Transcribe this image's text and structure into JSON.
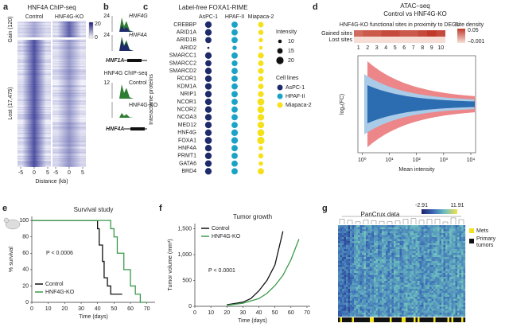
{
  "panels": {
    "a": {
      "letter": "a",
      "title": "HNF4A ChIP-seq",
      "columns": [
        "Control",
        "HNF4G-KO"
      ],
      "rows": [
        "Gain (120)",
        "Lost (17,475)"
      ],
      "colorbar": [
        0,
        20
      ],
      "xticks": [
        -5,
        0,
        5
      ],
      "xlabel": "Distance (kb)"
    },
    "b": {
      "letter": "b",
      "tracks": [
        {
          "name": "HNF4G",
          "scale": 24
        },
        {
          "name": "HNF4A",
          "scale": 24
        }
      ],
      "gene": "HNF1A",
      "title": "HNF4G ChIP-seq",
      "tracks2": [
        {
          "name": "Control",
          "scale": 12
        },
        {
          "name": "HNF4G-KO"
        }
      ],
      "gene2": "HNF4A"
    },
    "c": {
      "letter": "c",
      "title": "Label-free FOXA1-RIME",
      "ylabel": "Interactome proteins",
      "proteins": [
        "CREBBP",
        "ARID1A",
        "ARID1B",
        "ARID2",
        "SMARCC1",
        "SMARCC2",
        "SMARCD2",
        "RCOR1",
        "KDM1A",
        "NRIP1",
        "NCOR1",
        "NCOR2",
        "NCOA3",
        "MED12",
        "HNF4G",
        "FOXA1",
        "HNF4A",
        "PRMT1",
        "GATA6",
        "BRD4"
      ],
      "series": [
        {
          "name": "AsPC-1",
          "color": "#1f2a6b",
          "values": [
            18,
            18,
            17,
            6,
            18,
            17,
            18,
            18,
            18,
            18,
            18,
            18,
            18,
            18,
            18,
            19,
            18,
            18,
            18,
            18
          ]
        },
        {
          "name": "HPAF-II",
          "color": "#1ba3c6",
          "values": [
            17,
            17,
            17,
            12,
            17,
            16,
            17,
            17,
            17,
            17,
            17,
            17,
            17,
            17,
            18,
            18,
            17,
            17,
            17,
            17
          ]
        },
        {
          "name": "Miapaca-2",
          "color": "#f5e11a",
          "values": [
            15,
            14,
            12,
            10,
            16,
            15,
            16,
            15,
            15,
            16,
            19,
            19,
            18,
            18,
            19,
            20,
            12,
            14,
            12,
            17
          ]
        }
      ],
      "size_legend_title": "Intensity",
      "size_legend": [
        10,
        15,
        20
      ],
      "color_legend_title": "Cell lines"
    },
    "d": {
      "letter": "d",
      "title": "ATAC–seq",
      "subtitle": "Control vs HNF4G-KO",
      "heatmap_title": "HNF4G-KO functional sites in proximity to DEGs",
      "rows": [
        "Gained sites",
        "Lost sites"
      ],
      "columns": [
        1,
        2,
        3,
        4,
        5,
        6,
        7,
        8,
        9,
        10
      ],
      "density": [
        [
          0.035,
          0.04,
          0.04,
          0.045,
          0.045,
          0.04,
          0.04,
          0.045,
          0.05,
          0.045
        ],
        [
          0,
          0,
          0,
          0,
          0,
          0,
          0,
          0,
          0,
          0
        ]
      ],
      "colorbar_title": "Site density",
      "colorbar_ticks": [
        {
          "value": -0.001,
          "label": "–0.001"
        },
        0.05
      ],
      "xlabel": "Mean intensity",
      "ylabel": "log₂(FC)",
      "log_x": true,
      "xlim": [
        0.7,
        15000
      ],
      "xticks": [
        {
          "value": 1,
          "label": "10⁰"
        },
        {
          "value": 10,
          "label": "10¹"
        },
        {
          "value": 100,
          "label": "10²"
        },
        {
          "value": 1000,
          "label": "10³"
        },
        {
          "value": 10000,
          "label": "10⁴"
        }
      ]
    },
    "e": {
      "letter": "e",
      "type": "line",
      "title": "Survival study",
      "ylabel": "% survival",
      "xlabel": "Time (days)",
      "annotation": "P < 0.0006",
      "xlim": [
        0,
        75
      ],
      "ylim": [
        0,
        105
      ],
      "xticks": [
        0,
        10,
        20,
        30,
        40,
        50,
        60,
        70
      ],
      "yticks": [
        0,
        20,
        40,
        60,
        80,
        100
      ],
      "series": [
        {
          "name": "Control",
          "color": "#111111",
          "x": [
            0,
            40,
            40,
            41,
            41,
            43,
            43,
            44,
            44,
            46,
            46,
            48,
            48,
            55
          ],
          "values": [
            100,
            100,
            90,
            90,
            70,
            70,
            50,
            50,
            30,
            30,
            20,
            20,
            10,
            10
          ]
        },
        {
          "name": "HNF4G-KO",
          "color": "#3a9a4a",
          "x": [
            0,
            48,
            48,
            50,
            50,
            52,
            52,
            56,
            56,
            60,
            60,
            63,
            63,
            66,
            66,
            70
          ],
          "values": [
            100,
            100,
            90,
            90,
            80,
            80,
            60,
            60,
            40,
            40,
            20,
            20,
            10,
            10,
            0,
            0
          ]
        }
      ]
    },
    "f": {
      "letter": "f",
      "type": "line",
      "title": "Tumor growth",
      "ylabel": "Tumor volume (mm³)",
      "xlabel": "Time (days)",
      "annotation": "P < 0.0001",
      "xlim": [
        0,
        72
      ],
      "ylim": [
        0,
        1600
      ],
      "xticks": [
        0,
        10,
        20,
        30,
        40,
        50,
        60,
        70
      ],
      "yticks": [
        0,
        500,
        {
          "value": 1000,
          "label": "1,000"
        },
        {
          "value": 1500,
          "label": "1,500"
        }
      ],
      "series": [
        {
          "name": "Control",
          "color": "#111111",
          "x": [
            20,
            30,
            35,
            40,
            45,
            50,
            55
          ],
          "values": [
            30,
            80,
            150,
            300,
            500,
            800,
            1450
          ]
        },
        {
          "name": "HNF4G-KO",
          "color": "#3a9a4a",
          "x": [
            20,
            30,
            40,
            45,
            50,
            55,
            60,
            65
          ],
          "values": [
            20,
            60,
            150,
            250,
            400,
            600,
            900,
            1300
          ]
        }
      ]
    },
    "g": {
      "letter": "g",
      "title": "PanCrux data",
      "colorbar_ticks": [
        -2.91,
        11.91
      ],
      "legend": [
        {
          "name": "Mets",
          "color": "#f2e21c"
        },
        {
          "name": "Primary tumors",
          "color": "#111111"
        }
      ]
    }
  }
}
